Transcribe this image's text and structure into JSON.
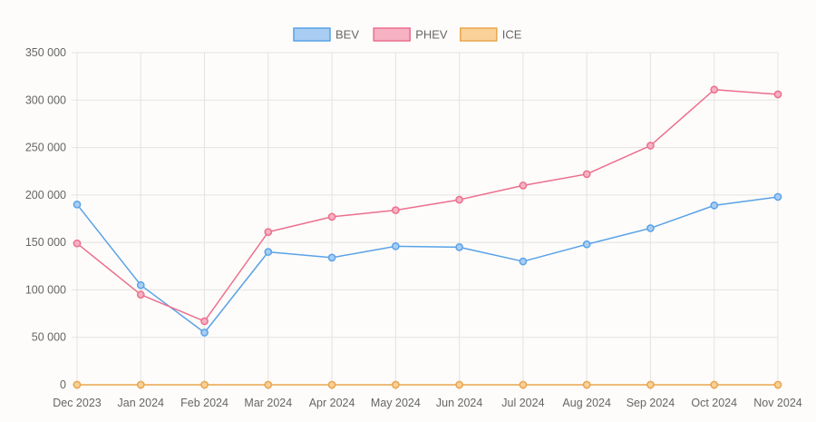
{
  "chart_data": {
    "type": "line",
    "categories": [
      "Dec 2023",
      "Jan 2024",
      "Feb 2024",
      "Mar 2024",
      "Apr 2024",
      "May 2024",
      "Jun 2024",
      "Jul 2024",
      "Aug 2024",
      "Sep 2024",
      "Oct 2024",
      "Nov 2024"
    ],
    "series": [
      {
        "name": "BEV",
        "color": "#5aa2e8",
        "fill": "#a9cdf3",
        "values": [
          190000,
          105000,
          55000,
          140000,
          134000,
          146000,
          145000,
          130000,
          148000,
          165000,
          189000,
          198000
        ]
      },
      {
        "name": "PHEV",
        "color": "#ec6f8e",
        "fill": "#f6b1c3",
        "values": [
          149000,
          95000,
          67000,
          161000,
          177000,
          184000,
          195000,
          210000,
          222000,
          252000,
          311000,
          306000
        ]
      },
      {
        "name": "ICE",
        "color": "#eaa54c",
        "fill": "#f9d199",
        "values": [
          0,
          0,
          0,
          0,
          0,
          0,
          0,
          0,
          0,
          0,
          0,
          0
        ]
      }
    ],
    "ylim": [
      0,
      350000
    ],
    "yticks": [
      0,
      50000,
      100000,
      150000,
      200000,
      250000,
      300000,
      350000
    ],
    "ytick_labels": [
      "0",
      "50 000",
      "100 000",
      "150 000",
      "200 000",
      "250 000",
      "300 000",
      "350 000"
    ],
    "grid": true,
    "legend": "top-center"
  }
}
